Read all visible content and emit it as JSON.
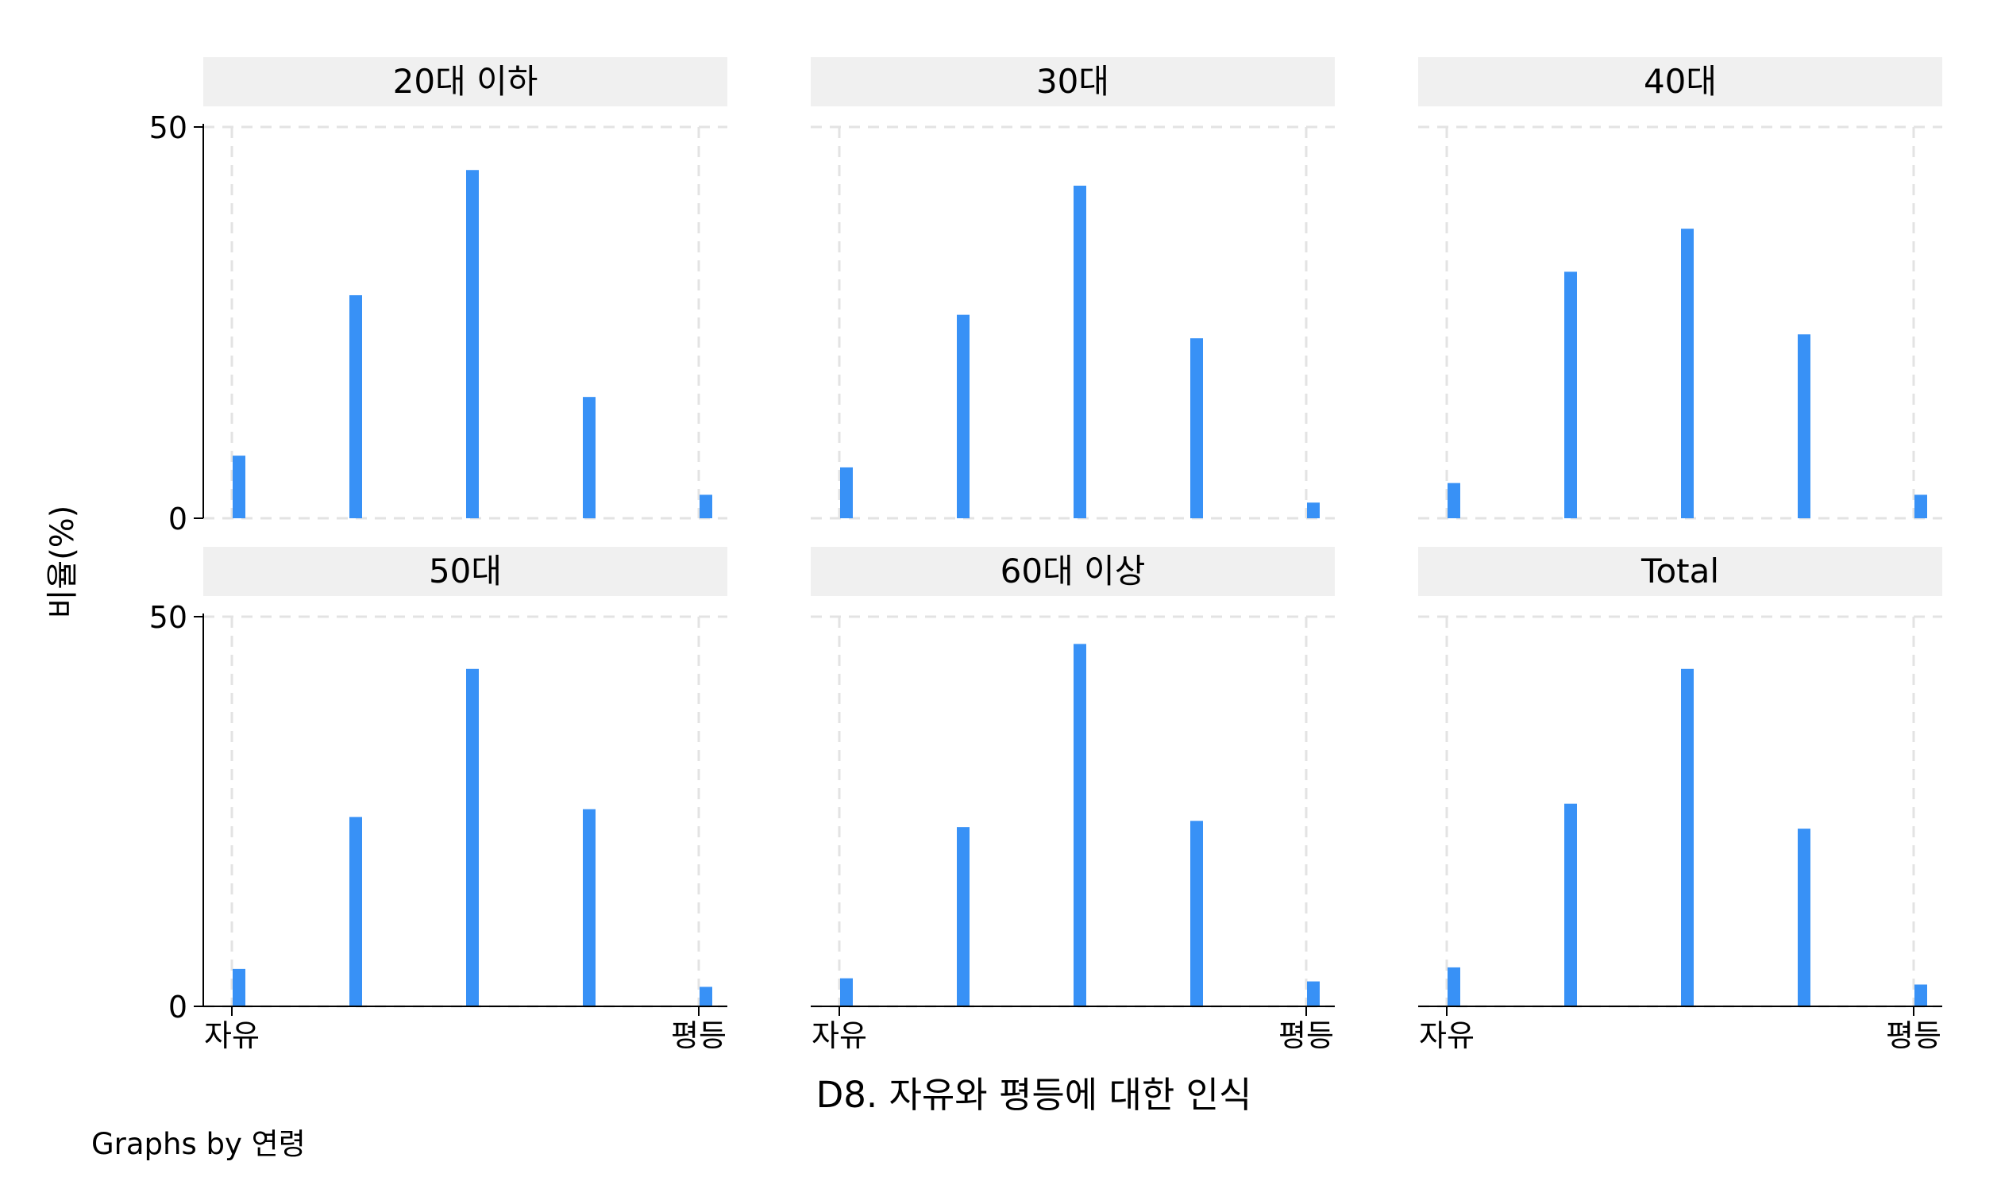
{
  "chart_data": {
    "type": "bar",
    "layout": "facet-grid 2x3",
    "ylabel": "비율(%)",
    "xlabel": "D8. 자유와 평등에 대한 인식",
    "note": "Graphs by 연령",
    "ylim": [
      0,
      50
    ],
    "y_ticks": [
      0,
      50
    ],
    "x_categories": [
      1,
      2,
      3,
      4,
      5
    ],
    "x_tick_labels": {
      "left": "자유",
      "right": "평등"
    },
    "grid": true,
    "bar_color": "#3891f6",
    "panels": [
      {
        "title": "20대 이하",
        "values": [
          8,
          28.5,
          44.5,
          15.5,
          3
        ]
      },
      {
        "title": "30대",
        "values": [
          6.5,
          26,
          42.5,
          23,
          2
        ]
      },
      {
        "title": "40대",
        "values": [
          4.5,
          31.5,
          37,
          23.5,
          3
        ]
      },
      {
        "title": "50대",
        "values": [
          4.8,
          24.3,
          43.3,
          25.3,
          2.5
        ]
      },
      {
        "title": "60대 이상",
        "values": [
          3.6,
          23,
          46.5,
          23.8,
          3.2
        ]
      },
      {
        "title": "Total",
        "values": [
          5,
          26,
          43.3,
          22.8,
          2.8
        ]
      }
    ]
  }
}
